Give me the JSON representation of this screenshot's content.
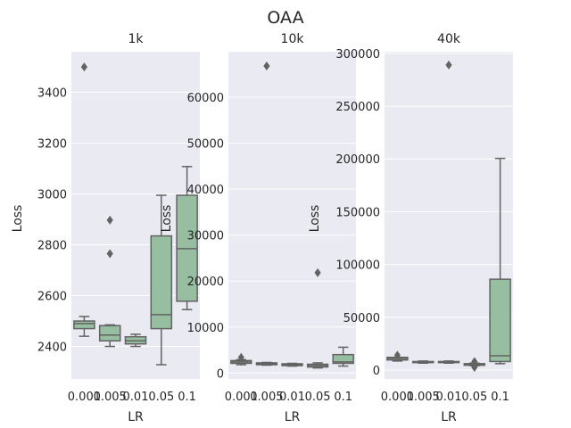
{
  "figure": {
    "suptitle": "OAA",
    "box_color": "#97bea0",
    "line_color": "#636363",
    "panel_bg": "#eaeaf2"
  },
  "chart_data": [
    {
      "type": "box",
      "title": "1k",
      "xlabel": "LR",
      "ylabel": "Loss",
      "categories": [
        "0.001",
        "0.005",
        "0.01",
        "0.05",
        "0.1"
      ],
      "yticks": [
        2400,
        2600,
        2800,
        3000,
        3200,
        3400
      ],
      "ylim": [
        2272,
        3560
      ],
      "grid": true,
      "boxes": [
        {
          "q1": 2470,
          "median": 2490,
          "q3": 2500,
          "whislo": 2440,
          "whishi": 2518,
          "fliers": [
            3500
          ]
        },
        {
          "q1": 2422,
          "median": 2445,
          "q3": 2482,
          "whislo": 2400,
          "whishi": 2485,
          "fliers": [
            2765,
            2897
          ]
        },
        {
          "q1": 2410,
          "median": 2422,
          "q3": 2438,
          "whislo": 2400,
          "whishi": 2448,
          "fliers": []
        },
        {
          "q1": 2470,
          "median": 2525,
          "q3": 2835,
          "whislo": 2328,
          "whishi": 2995,
          "fliers": []
        },
        {
          "q1": 2578,
          "median": 2785,
          "q3": 2995,
          "whislo": 2545,
          "whishi": 3108,
          "fliers": []
        }
      ]
    },
    {
      "type": "box",
      "title": "10k",
      "xlabel": "LR",
      "ylabel": "Loss",
      "categories": [
        "0.001",
        "0.005",
        "0.01",
        "0.05",
        "0.1"
      ],
      "yticks": [
        0,
        10000,
        20000,
        30000,
        40000,
        50000,
        60000
      ],
      "ylim": [
        -1300,
        69900
      ],
      "grid": true,
      "boxes": [
        {
          "q1": 2100,
          "median": 2400,
          "q3": 2700,
          "whislo": 1800,
          "whishi": 2900,
          "fliers": [
            3400
          ]
        },
        {
          "q1": 1800,
          "median": 2000,
          "q3": 2200,
          "whislo": 1700,
          "whishi": 2300,
          "fliers": [
            66800
          ]
        },
        {
          "q1": 1600,
          "median": 1800,
          "q3": 2000,
          "whislo": 1500,
          "whishi": 2100,
          "fliers": []
        },
        {
          "q1": 1300,
          "median": 1600,
          "q3": 1900,
          "whislo": 1100,
          "whishi": 2200,
          "fliers": [
            21800
          ]
        },
        {
          "q1": 2100,
          "median": 2400,
          "q3": 4000,
          "whislo": 1500,
          "whishi": 5600,
          "fliers": []
        }
      ]
    },
    {
      "type": "box",
      "title": "40k",
      "xlabel": "LR",
      "ylabel": "Loss",
      "categories": [
        "0.001",
        "0.005",
        "0.01",
        "0.05",
        "0.1"
      ],
      "yticks": [
        0,
        50000,
        100000,
        150000,
        200000,
        250000,
        300000
      ],
      "ylim": [
        -8500,
        301600
      ],
      "grid": true,
      "boxes": [
        {
          "q1": 9500,
          "median": 11000,
          "q3": 12000,
          "whislo": 8500,
          "whishi": 12000,
          "fliers": [
            14000
          ]
        },
        {
          "q1": 7000,
          "median": 7500,
          "q3": 8000,
          "whislo": 6500,
          "whishi": 8500,
          "fliers": []
        },
        {
          "q1": 7000,
          "median": 7500,
          "q3": 8000,
          "whislo": 6500,
          "whishi": 8500,
          "fliers": [
            289000
          ]
        },
        {
          "q1": 4500,
          "median": 5000,
          "q3": 6000,
          "whislo": 4000,
          "whishi": 6500,
          "fliers": [
            2500,
            8000
          ]
        },
        {
          "q1": 8000,
          "median": 13500,
          "q3": 86000,
          "whislo": 6000,
          "whishi": 200500,
          "fliers": []
        }
      ]
    }
  ]
}
